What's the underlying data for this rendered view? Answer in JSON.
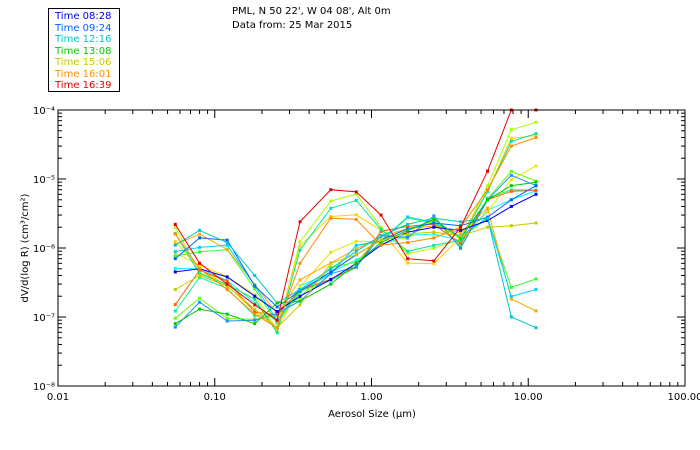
{
  "header": {
    "station": "PML, N 50 22', W 04 08', Alt 0m",
    "data_from": "Data from: 25 Mar 2015"
  },
  "chart_data": {
    "type": "line",
    "title": "PML, N 50 22', W 04 08', Alt 0m",
    "subtitle": "Data from: 25 Mar 2015",
    "xlabel": "Aerosol Size (µm)",
    "ylabel": "dV/d(log R) (cm³/cm²)",
    "xscale": "log",
    "yscale": "log",
    "xlim": [
      0.01,
      100
    ],
    "ylim": [
      1e-08,
      0.0001
    ],
    "x_tick_labels": [
      "0.01",
      "0.10",
      "1.00",
      "10.00",
      "100.00"
    ],
    "y_tick_labels": [
      "10⁻⁸",
      "10⁻⁷",
      "10⁻⁶",
      "10⁻⁵",
      "10⁻⁴"
    ],
    "x_sizes_um": [
      0.056,
      0.08,
      0.12,
      0.18,
      0.25,
      0.35,
      0.55,
      0.8,
      1.15,
      1.7,
      2.5,
      3.7,
      5.5,
      7.8,
      11.2
    ],
    "legend_position": "top-left",
    "series": [
      {
        "name": "Time 08:28",
        "color": "#0000ff",
        "values": [
          4.5e-07,
          5e-07,
          3.8e-07,
          2e-07,
          1.2e-07,
          2e-07,
          3.5e-07,
          6e-07,
          1.1e-06,
          1.7e-06,
          2e-06,
          1.8e-06,
          2.5e-06,
          4e-06,
          6e-06
        ]
      },
      {
        "name": "Time 09:24",
        "color": "#0064ff",
        "values": [
          7e-07,
          1.4e-06,
          1.3e-06,
          2.8e-07,
          1.4e-07,
          2.4e-07,
          4.5e-07,
          8e-07,
          1.3e-06,
          1.9e-06,
          2.3e-06,
          2.1e-06,
          2.8e-06,
          5e-06,
          8e-06
        ]
      },
      {
        "name": "Time 12:16",
        "color": "#00c8c8",
        "values": [
          1.1e-06,
          1.8e-06,
          1.2e-06,
          4e-07,
          1.6e-07,
          2.5e-07,
          5e-07,
          9e-07,
          1.5e-06,
          2.2e-06,
          2.7e-06,
          2.4e-06,
          2.7e-06,
          1e-07,
          7e-08
        ]
      },
      {
        "name": "Time 13:08",
        "color": "#00c800",
        "values": [
          8e-08,
          1.3e-07,
          1.1e-07,
          8e-08,
          1.6e-07,
          1.7e-07,
          3e-07,
          6e-07,
          1.2e-06,
          1.8e-06,
          2.6e-06,
          1.4e-06,
          5e-06,
          8e-06,
          9e-06
        ]
      },
      {
        "name": "Time 15:06",
        "color": "#c8c800",
        "values": [
          2.5e-07,
          4e-07,
          2.8e-07,
          1.3e-07,
          7e-08,
          1.5e-07,
          6e-07,
          8e-07,
          1.3e-06,
          1.6e-06,
          1.7e-06,
          1.5e-06,
          2e-06,
          2.1e-06,
          2.3e-06
        ]
      },
      {
        "name": "Time 16:01",
        "color": "#ff8c00",
        "values": [
          1.6e-06,
          5e-07,
          2.5e-07,
          1.1e-07,
          7e-08,
          6e-07,
          2.7e-06,
          2.6e-06,
          1.1e-06,
          1.2e-06,
          1.4e-06,
          2e-06,
          7e-06,
          3e-05,
          4e-05
        ]
      },
      {
        "name": "Time 16:39",
        "color": "#e60000",
        "values": [
          2.2e-06,
          6e-07,
          3e-07,
          1.5e-07,
          9e-08,
          2.4e-06,
          7e-06,
          6.5e-06,
          3e-06,
          7e-07,
          6.5e-07,
          2e-06,
          1.3e-05,
          0.0001,
          0.0001
        ]
      }
    ],
    "extra_trace_colors": [
      "#00ffff",
      "#00ff96",
      "#32ff32",
      "#64ff00",
      "#aaff00",
      "#e6e600",
      "#ffd200",
      "#ffaa00",
      "#ff6400",
      "#00d2ff",
      "#1e90ff",
      "#00e6a0"
    ]
  }
}
